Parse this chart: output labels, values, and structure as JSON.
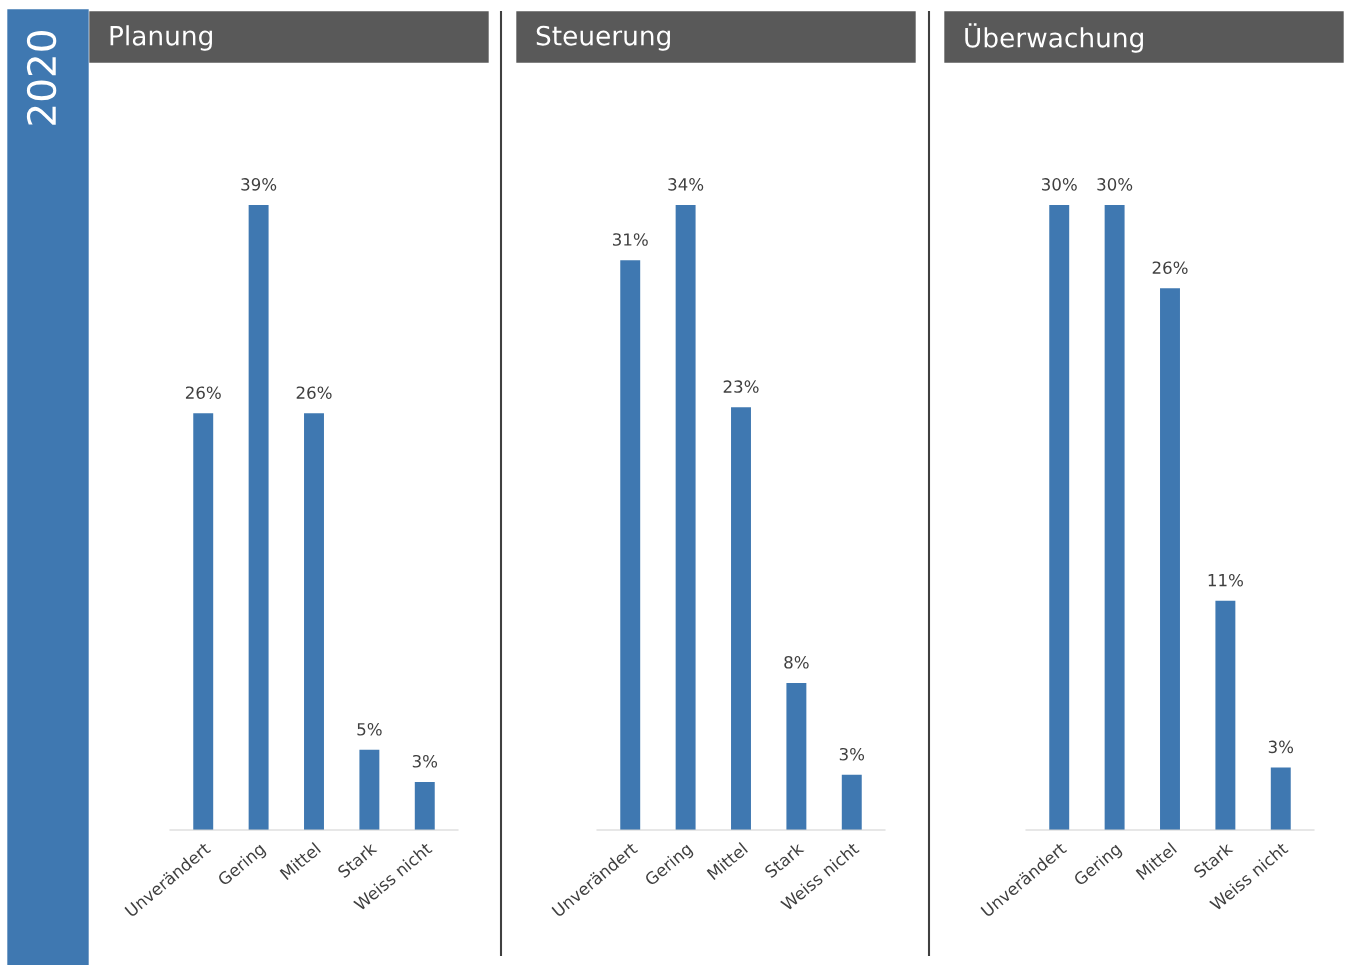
{
  "chart_data": [
    {
      "type": "bar",
      "title": "Planung",
      "categories": [
        "Unverändert",
        "Gering",
        "Mittel",
        "Stark",
        "Weiss nicht"
      ],
      "values": [
        26,
        39,
        26,
        5,
        3
      ],
      "value_labels": [
        "26%",
        "39%",
        "26%",
        "5%",
        "3%"
      ],
      "color": "#3f78b1",
      "annotations": [
        "2020"
      ]
    },
    {
      "type": "bar",
      "title": "Steuerung",
      "categories": [
        "Unverändert",
        "Gering",
        "Mittel",
        "Stark",
        "Weiss nicht"
      ],
      "values": [
        31,
        34,
        23,
        8,
        3
      ],
      "value_labels": [
        "31%",
        "34%",
        "23%",
        "8%",
        "3%"
      ],
      "color": "#3f78b1"
    },
    {
      "type": "bar",
      "title": "Überwachung",
      "categories": [
        "Unverändert",
        "Gering",
        "Mittel",
        "Stark",
        "Weiss nicht"
      ],
      "values": [
        30,
        30,
        26,
        11,
        3
      ],
      "value_labels": [
        "30%",
        "30%",
        "26%",
        "11%",
        "3%"
      ],
      "color": "#3f78b1"
    }
  ]
}
